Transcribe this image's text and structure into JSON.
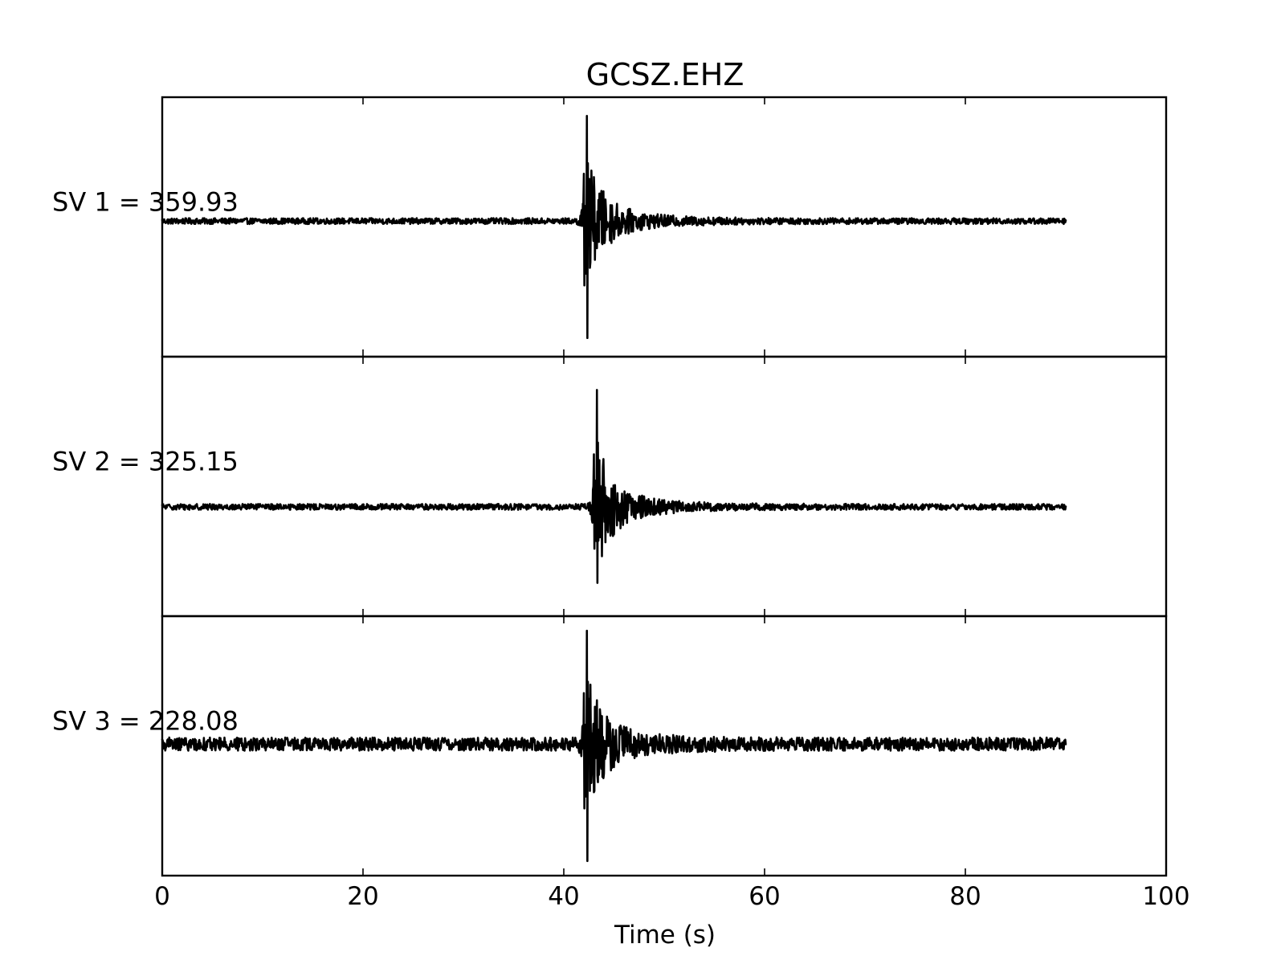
{
  "chart_data": {
    "type": "line",
    "title": "GCSZ.EHZ",
    "xlabel": "Time (s)",
    "xlim": [
      0,
      100
    ],
    "xticks": [
      0,
      20,
      40,
      60,
      80,
      100
    ],
    "x_tick_labels": [
      "0",
      "20",
      "40",
      "60",
      "80",
      "100"
    ],
    "grid": false,
    "trace_color": "#000000",
    "record_end_s": 90,
    "panels": [
      {
        "label": "SV 1 = 359.93",
        "event_s": 42.3,
        "noise_level": 0.025,
        "peak_pos": 0.9,
        "peak_neg": -1.0
      },
      {
        "label": "SV 2 = 325.15",
        "event_s": 43.3,
        "noise_level": 0.025,
        "peak_pos": 1.0,
        "peak_neg": -0.65
      },
      {
        "label": "SV 3 = 228.08",
        "event_s": 42.3,
        "noise_level": 0.055,
        "peak_pos": 0.95,
        "peak_neg": -0.98
      }
    ]
  }
}
